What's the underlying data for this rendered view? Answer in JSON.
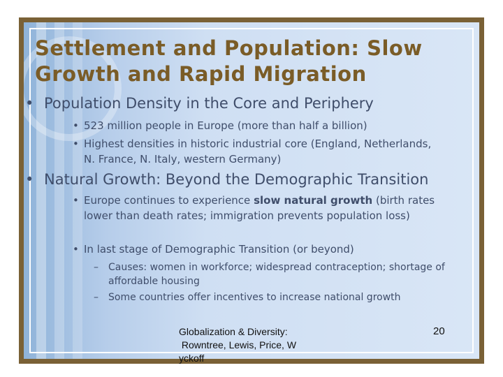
{
  "slide": {
    "title": "Settlement and Population: Slow Growth and Rapid Migration",
    "bullet_char": "•",
    "dash_char": "–",
    "sections": [
      {
        "heading": "Population Density in the Core and Periphery",
        "items": [
          "523 million people in Europe (more than half a billion)",
          "Highest densities in historic industrial core (England, Netherlands, N. France, N. Italy, western Germany)"
        ]
      },
      {
        "heading": "Natural Growth: Beyond the Demographic Transition",
        "item1_before": "Europe continues to experience ",
        "item1_bold": "slow natural growth",
        "item1_after": " (birth rates lower than death rates; immigration prevents population loss)",
        "item2": "In last stage of Demographic Transition (or beyond)",
        "subitems": [
          "Causes: women in workforce; widespread contraception; shortage of affordable housing",
          "Some countries offer incentives to increase national growth"
        ]
      }
    ],
    "footer": {
      "line1": "Globalization & Diversity:",
      "line2": " Rowntree, Lewis, Price, W",
      "line3": "yckoff",
      "page_number": "20"
    }
  }
}
